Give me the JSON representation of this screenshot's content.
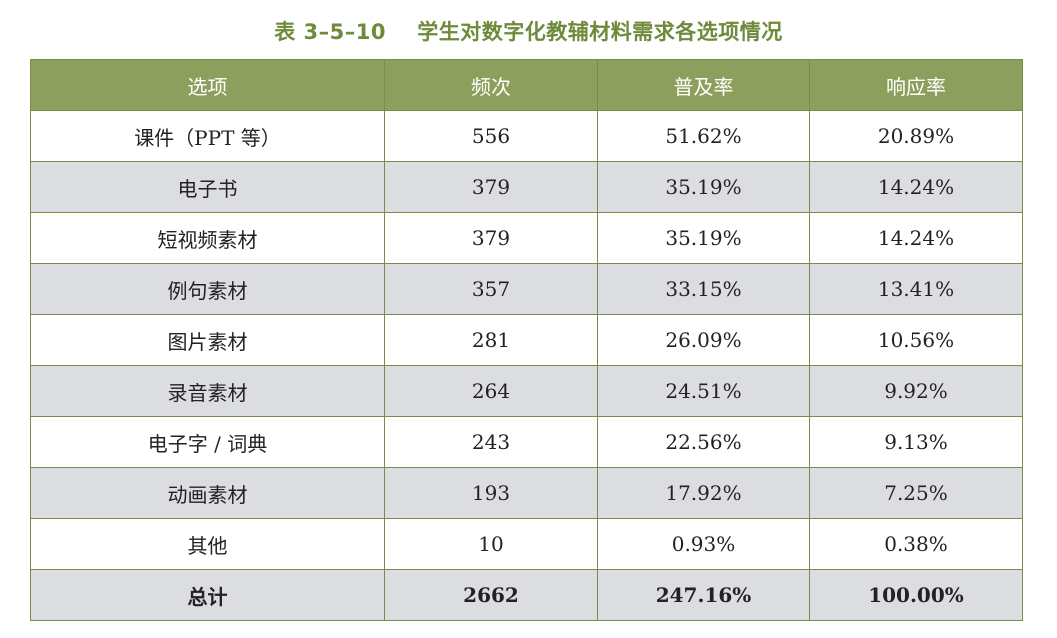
{
  "caption": "表 3–5–10    学生对数字化教辅材料需求各选项情况",
  "colors": {
    "caption": "#6e8a3a",
    "header_bg": "#8d9f5c",
    "border": "#7a8c4a",
    "stripe": "#dcdde1"
  },
  "table": {
    "headers": [
      "选项",
      "频次",
      "普及率",
      "响应率"
    ],
    "rows": [
      [
        "课件（PPT 等）",
        "556",
        "51.62%",
        "20.89%"
      ],
      [
        "电子书",
        "379",
        "35.19%",
        "14.24%"
      ],
      [
        "短视频素材",
        "379",
        "35.19%",
        "14.24%"
      ],
      [
        "例句素材",
        "357",
        "33.15%",
        "13.41%"
      ],
      [
        "图片素材",
        "281",
        "26.09%",
        "10.56%"
      ],
      [
        "录音素材",
        "264",
        "24.51%",
        "9.92%"
      ],
      [
        "电子字 / 词典",
        "243",
        "22.56%",
        "9.13%"
      ],
      [
        "动画素材",
        "193",
        "17.92%",
        "7.25%"
      ],
      [
        "其他",
        "10",
        "0.93%",
        "0.38%"
      ]
    ],
    "total": [
      "总计",
      "2662",
      "247.16%",
      "100.00%"
    ]
  }
}
